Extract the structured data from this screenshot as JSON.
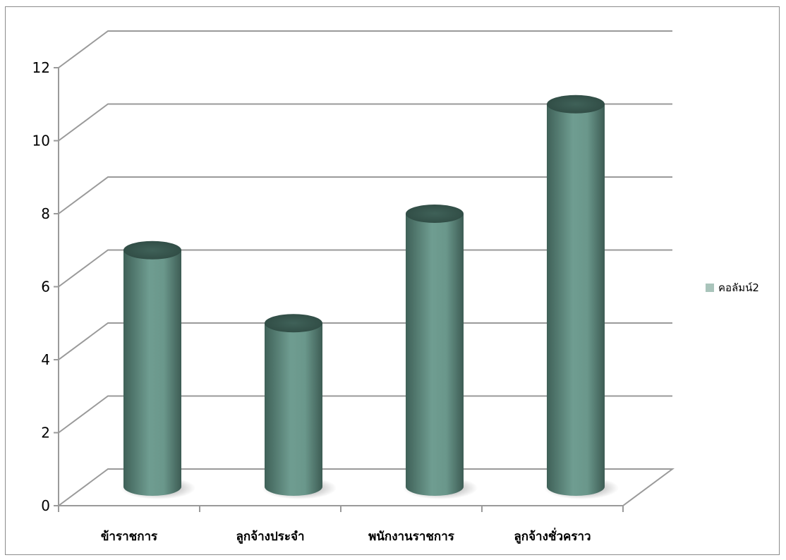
{
  "chart_data": {
    "type": "bar",
    "title": "",
    "xlabel": "",
    "ylabel": "",
    "categories": [
      "ข้าราชการ",
      "ลูกจ้างประจำ",
      "พนักงานราชการ",
      "ลูกจ้างชั่วคราว"
    ],
    "series": [
      {
        "name": "คอลัมน์2",
        "values": [
          7,
          5,
          8,
          11
        ]
      }
    ],
    "ylim": [
      0,
      12
    ],
    "yticks": [
      "0",
      "2",
      "4",
      "6",
      "8",
      "10",
      "12"
    ],
    "grid": true,
    "legend": "right",
    "style": "3d-cylinder",
    "colors": {
      "bar": "#5f8e82",
      "bar_light": "#8fb9ad",
      "bar_dark": "#3c5d54",
      "grid": "#9a9a9a",
      "legend_swatch": "#a9c4bb"
    }
  }
}
